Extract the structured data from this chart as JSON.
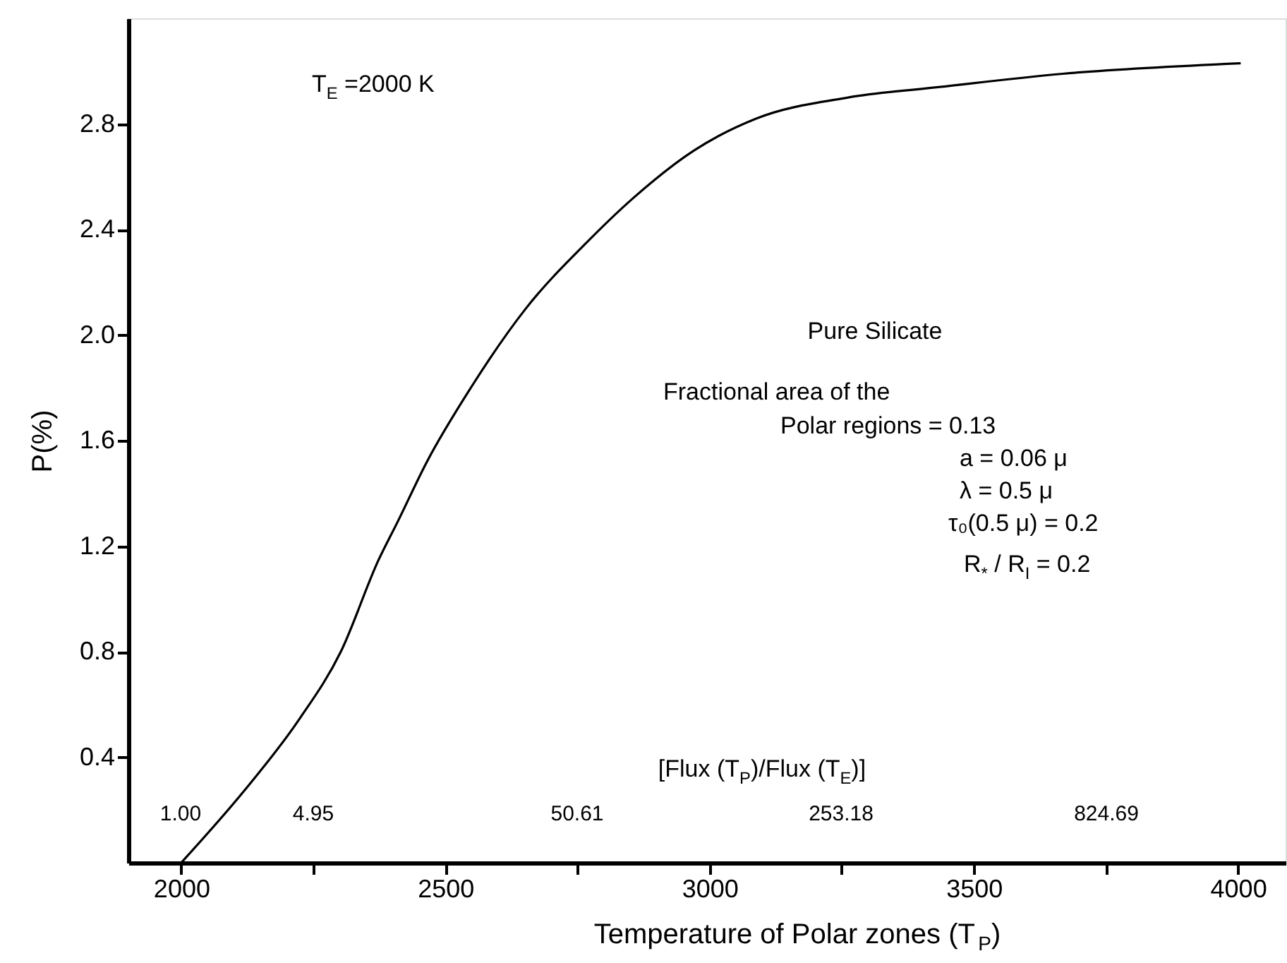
{
  "chart_data": {
    "type": "line",
    "xlabel": "Temperature of Polar zones (T$_{P}$)",
    "ylabel": "P(%)",
    "xlim": [
      1900,
      4090
    ],
    "ylim": [
      0,
      3.2
    ],
    "xticks": [
      2000,
      {
        "value": 2250,
        "label": null
      },
      2500,
      {
        "value": 2750,
        "label": null
      },
      3000,
      {
        "value": 3250,
        "label": null
      },
      3500,
      {
        "value": 3750,
        "label": null
      },
      4000
    ],
    "yticks": [
      0.4,
      0.8,
      1.2,
      1.6,
      {
        "value": 2,
        "label": "2.0"
      },
      2.4,
      2.8
    ],
    "grid": false,
    "marker": "none",
    "line_style": "solid",
    "series": [
      {
        "color": "#000000",
        "x": [
          2000,
          2118,
          2222,
          2302,
          2374,
          2409,
          2465,
          2548,
          2652,
          2767,
          2856,
          2971,
          3088,
          3262,
          3436,
          3668,
          4005
        ],
        "values": [
          0,
          0.27,
          0.54,
          0.8,
          1.15,
          1.29,
          1.52,
          1.8,
          2.1,
          2.35,
          2.52,
          2.7,
          2.82,
          2.9,
          2.94,
          2.99,
          3.03
        ]
      }
    ],
    "annotations": [
      "T$_{E}$ =2000 K",
      "Pure Silicate",
      "Fractional area of the",
      "Polar regions   = 0.13",
      "a   = 0.06 μ",
      "λ   = 0.5 μ",
      "τ₀(0.5 μ) = 0.2",
      "R$_{*}$ / R$_{I}$ = 0.2",
      "[Flux (T$_{P}$)/Flux (T$_{E}$)]",
      "1.00",
      "4.95",
      "50.61",
      "253.18",
      "824.69"
    ]
  }
}
